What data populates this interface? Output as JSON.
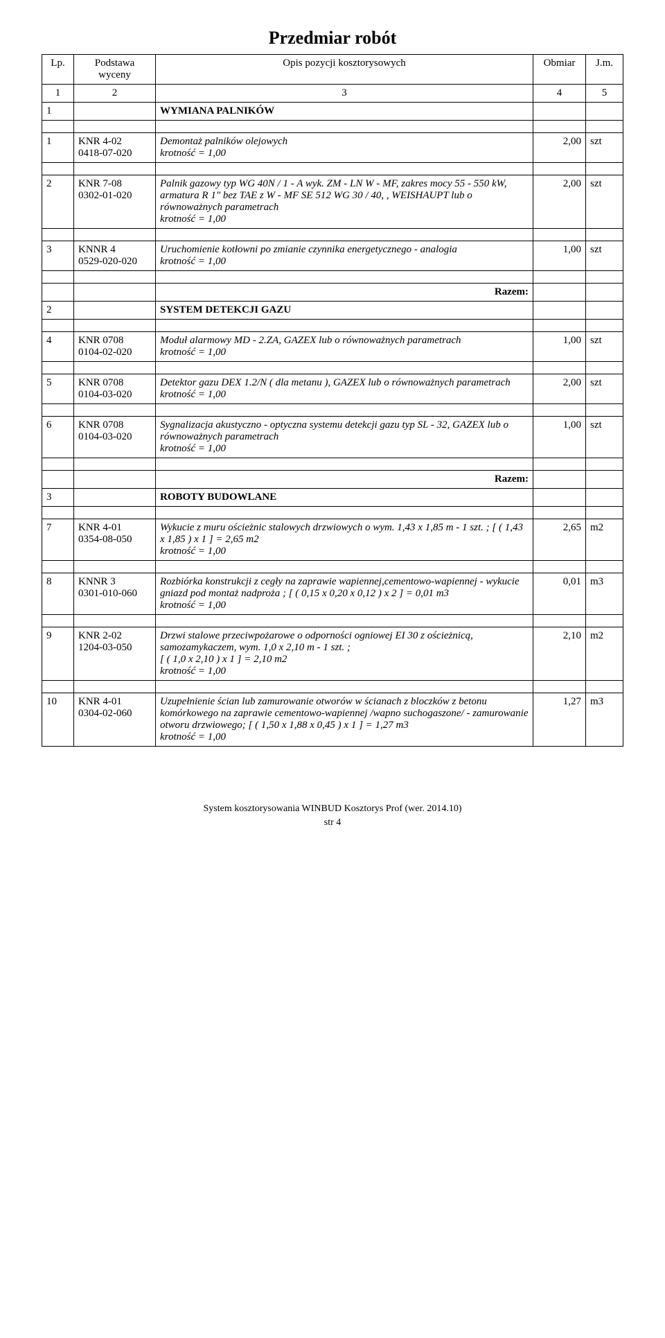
{
  "title": "Przedmiar robót",
  "header": {
    "lp": "Lp.",
    "base": "Podstawa wyceny",
    "desc": "Opis pozycji kosztorysowych",
    "obm": "Obmiar",
    "jm": "J.m."
  },
  "colnums": {
    "c1": "1",
    "c2": "2",
    "c3": "3",
    "c4": "4",
    "c5": "5"
  },
  "sections": [
    {
      "lp": "1",
      "title": "WYMIANA PALNIKÓW"
    },
    {
      "lp": "2",
      "title": "SYSTEM DETEKCJI GAZU"
    },
    {
      "lp": "3",
      "title": "ROBOTY BUDOWLANE"
    }
  ],
  "razem_label": "Razem:",
  "items": [
    {
      "lp": "1",
      "base1": "KNR 4-02",
      "base2": "0418-07-020",
      "desc": "Demontaż palników olejowych\nkrotność = 1,00",
      "obm": "2,00",
      "jm": "szt"
    },
    {
      "lp": "2",
      "base1": "KNR 7-08",
      "base2": "0302-01-020",
      "desc": "Palnik gazowy typ WG 40N / 1 - A wyk. ZM - LN W - MF, zakres mocy 55 - 550 kW, armatura R 1\" bez TAE z W - MF SE 512 WG 30 / 40, , WEISHAUPT lub o równoważnych parametrach\nkrotność = 1,00",
      "obm": "2,00",
      "jm": "szt"
    },
    {
      "lp": "3",
      "base1": "KNNR 4",
      "base2": "0529-020-020",
      "desc": "Uruchomienie kotłowni po zmianie czynnika energetycznego - analogia\nkrotność = 1,00",
      "obm": "1,00",
      "jm": "szt"
    },
    {
      "lp": "4",
      "base1": "KNR 0708",
      "base2": "0104-02-020",
      "desc": "Moduł alarmowy MD - 2.ZA, GAZEX lub o równoważnych parametrach\nkrotność = 1,00",
      "obm": "1,00",
      "jm": "szt"
    },
    {
      "lp": "5",
      "base1": "KNR 0708",
      "base2": "0104-03-020",
      "desc": "Detektor gazu DEX 1.2/N ( dla metanu ), GAZEX lub o równoważnych parametrach\nkrotność = 1,00",
      "obm": "2,00",
      "jm": "szt"
    },
    {
      "lp": "6",
      "base1": "KNR 0708",
      "base2": "0104-03-020",
      "desc": "Sygnalizacja akustyczno - optyczna systemu detekcji gazu typ SL - 32, GAZEX lub o równoważnych parametrach\nkrotność = 1,00",
      "obm": "1,00",
      "jm": "szt"
    },
    {
      "lp": "7",
      "base1": "KNR 4-01",
      "base2": "0354-08-050",
      "desc": "Wykucie z muru ościeżnic stalowych drzwiowych o wym. 1,43 x 1,85 m - 1 szt. ; [ ( 1,43 x 1,85 ) x 1 ] = 2,65 m2\nkrotność = 1,00",
      "obm": "2,65",
      "jm": "m2"
    },
    {
      "lp": "8",
      "base1": "KNNR 3",
      "base2": "0301-010-060",
      "desc": "Rozbiórka konstrukcji z cegły na zaprawie wapiennej,cementowo-wapiennej - wykucie gniazd pod montaż nadproża ; [ ( 0,15 x 0,20 x 0,12 ) x 2 ] = 0,01 m3\nkrotność = 1,00",
      "obm": "0,01",
      "jm": "m3"
    },
    {
      "lp": "9",
      "base1": "KNR 2-02",
      "base2": "1204-03-050",
      "desc": "Drzwi stalowe przeciwpożarowe o odporności ogniowej EI 30 z ościeżnicą, samozamykaczem, wym. 1,0 x 2,10 m - 1 szt. ;\n [ ( 1,0 x 2,10 ) x 1 ] = 2,10 m2\nkrotność = 1,00",
      "obm": "2,10",
      "jm": "m2"
    },
    {
      "lp": "10",
      "base1": "KNR 4-01",
      "base2": "0304-02-060",
      "desc": "Uzupełnienie ścian lub zamurowanie otworów w ścianach z bloczków z betonu komórkowego na zaprawie cementowo-wapiennej /wapno suchogaszone/ - zamurowanie otworu drzwiowego; [ ( 1,50 x 1,88 x 0,45 ) x 1 ] = 1,27 m3\nkrotność = 1,00",
      "obm": "1,27",
      "jm": "m3"
    }
  ],
  "footer": {
    "line1": "System kosztorysowania WINBUD Kosztorys Prof (wer. 2014.10)",
    "line2": "str 4"
  }
}
